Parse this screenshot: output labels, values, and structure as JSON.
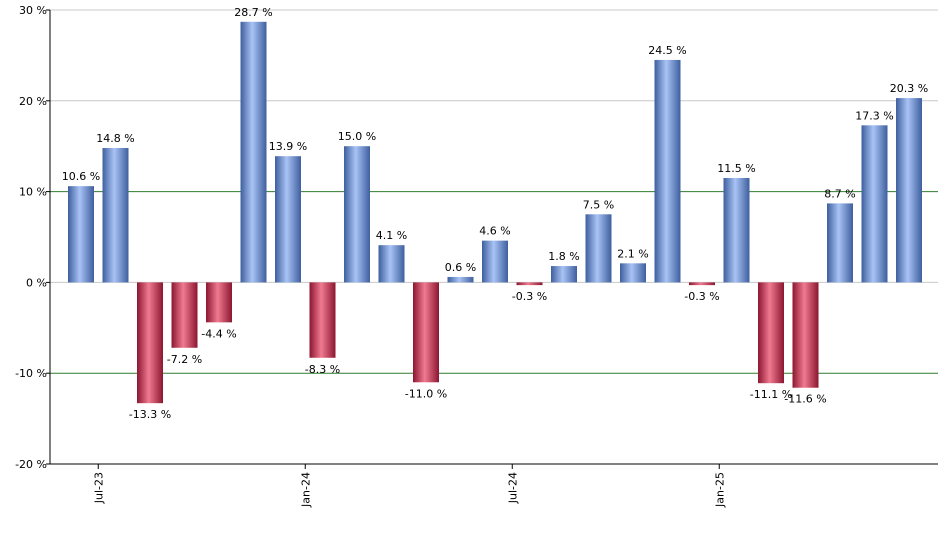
{
  "chart_data": {
    "type": "bar",
    "title": "",
    "xlabel": "",
    "ylabel": "",
    "ylim": [
      -20,
      30
    ],
    "yticks": [
      30,
      20,
      10,
      0,
      -10,
      -20
    ],
    "ytick_labels": [
      "30 %",
      "20 %",
      "10 %",
      "0 %",
      "-10 %",
      "-20 %"
    ],
    "x_labels": [
      {
        "after_index": 0,
        "text": "Jul-23"
      },
      {
        "after_index": 6,
        "text": "Jan-24"
      },
      {
        "after_index": 12,
        "text": "Jul-24"
      },
      {
        "after_index": 18,
        "text": "Jan-25"
      }
    ],
    "values": [
      10.6,
      14.8,
      -13.3,
      -7.2,
      -4.4,
      28.7,
      13.9,
      -8.3,
      15.0,
      4.1,
      -11.0,
      0.6,
      4.6,
      -0.3,
      1.8,
      7.5,
      2.1,
      24.5,
      -0.3,
      11.5,
      -11.1,
      -11.6,
      8.7,
      17.3,
      20.3
    ],
    "value_labels": [
      "10.6 %",
      "14.8 %",
      "-13.3 %",
      "-7.2 %",
      "-4.4 %",
      "28.7 %",
      "13.9 %",
      "-8.3 %",
      "15.0 %",
      "4.1 %",
      "-11.0 %",
      "0.6 %",
      "4.6 %",
      "-0.3 %",
      "1.8 %",
      "7.5 %",
      "2.1 %",
      "24.5 %",
      "-0.3 %",
      "11.5 %",
      "-11.1 %",
      "-11.6 %",
      "8.7 %",
      "17.3 %",
      "20.3 %"
    ],
    "grid": true,
    "highlight_lines": [
      10,
      -10
    ],
    "colors": {
      "positive_light": "#a9c3f5",
      "positive_dark": "#3e5f9e",
      "negative_light": "#f07a90",
      "negative_dark": "#8c1630",
      "grid": "#c8c8c8",
      "highlight": "#2e7d2e",
      "axis": "#000000"
    }
  }
}
